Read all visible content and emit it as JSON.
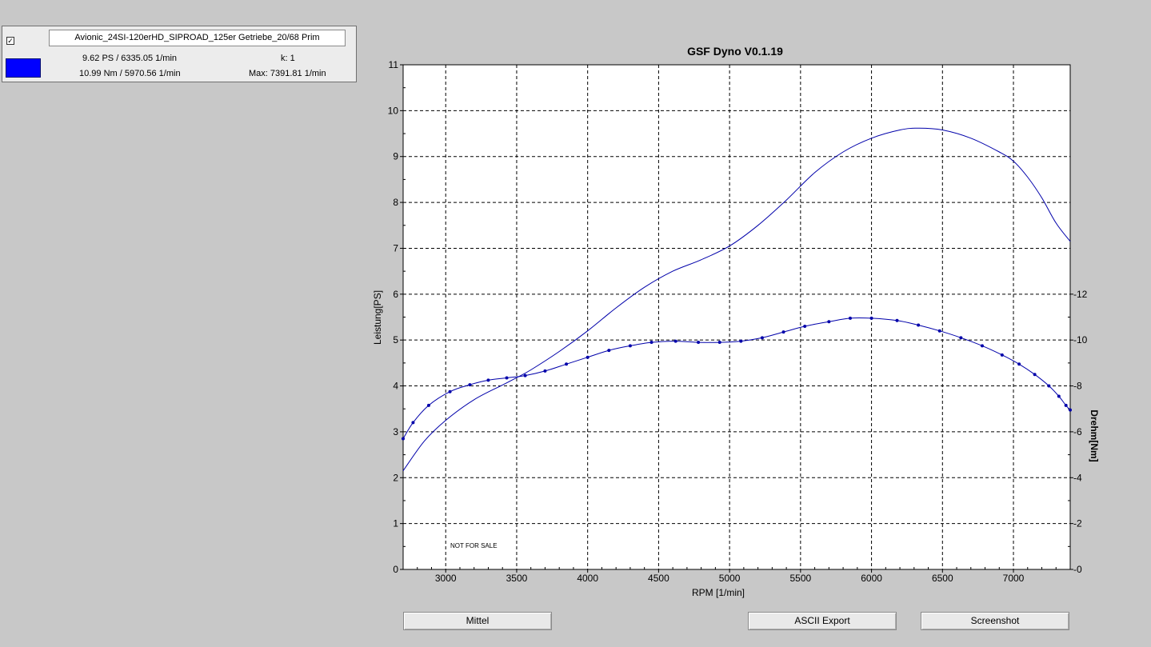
{
  "legend": {
    "checkbox_glyph": "✓",
    "file_name": "Avionic_24SI-120erHD_SIPROAD_125er Getriebe_20/68 Prim",
    "power_peak": "9.62 PS / 6335.05 1/min",
    "torque_peak": "10.99 Nm / 5970.56 1/min",
    "k_value": "k: 1",
    "max_rpm": "Max: 7391.81 1/min",
    "swatch_color": "#0000ff"
  },
  "watermark": "NOT FOR SALE",
  "buttons": {
    "mittel": "Mittel",
    "ascii_export": "ASCII Export",
    "screenshot": "Screenshot"
  },
  "chart_data": {
    "type": "line",
    "title": "GSF Dyno V0.1.19",
    "xlabel": "RPM [1/min]",
    "ylabel": "Leistung[PS]",
    "y2label": "Drehm[Nm]",
    "xlim": [
      2700,
      7400
    ],
    "ylim": [
      0,
      11
    ],
    "y2lim": [
      0,
      22
    ],
    "grid": true,
    "x_ticks": [
      "3000",
      "3500",
      "4000",
      "4500",
      "5000",
      "5500",
      "6000",
      "6500",
      "7000"
    ],
    "y_ticks": [
      "0",
      "1",
      "2",
      "3",
      "4",
      "5",
      "6",
      "7",
      "8",
      "9",
      "10",
      "11"
    ],
    "y2_ticks": [
      "0",
      "2",
      "4",
      "6",
      "8",
      "10",
      "12"
    ],
    "line_color": "#0000aa",
    "series": [
      {
        "axis": "left",
        "markers": false,
        "x": [
          2700,
          2850,
          3000,
          3200,
          3400,
          3500,
          3600,
          3800,
          4000,
          4200,
          4400,
          4600,
          4800,
          5000,
          5200,
          5400,
          5600,
          5800,
          6000,
          6200,
          6335,
          6500,
          6700,
          6900,
          7000,
          7100,
          7200,
          7300,
          7400
        ],
        "y": [
          2.15,
          2.8,
          3.25,
          3.7,
          4.02,
          4.18,
          4.35,
          4.75,
          5.2,
          5.7,
          6.15,
          6.5,
          6.75,
          7.05,
          7.5,
          8.05,
          8.65,
          9.1,
          9.4,
          9.58,
          9.62,
          9.58,
          9.4,
          9.1,
          8.9,
          8.55,
          8.1,
          7.55,
          7.15
        ]
      },
      {
        "axis": "right",
        "markers": true,
        "x": [
          2700,
          2770,
          2880,
          3030,
          3170,
          3300,
          3430,
          3560,
          3700,
          3850,
          4000,
          4150,
          4300,
          4450,
          4620,
          4780,
          4930,
          5080,
          5230,
          5380,
          5530,
          5700,
          5850,
          6000,
          6180,
          6330,
          6480,
          6630,
          6780,
          6920,
          7040,
          7150,
          7250,
          7320,
          7370,
          7400
        ],
        "y": [
          5.7,
          6.4,
          7.15,
          7.75,
          8.05,
          8.25,
          8.35,
          8.45,
          8.65,
          8.95,
          9.25,
          9.55,
          9.75,
          9.9,
          9.95,
          9.9,
          9.9,
          9.95,
          10.1,
          10.35,
          10.6,
          10.8,
          10.95,
          10.95,
          10.85,
          10.65,
          10.4,
          10.1,
          9.75,
          9.35,
          8.95,
          8.5,
          8.0,
          7.55,
          7.15,
          6.95
        ]
      }
    ]
  }
}
